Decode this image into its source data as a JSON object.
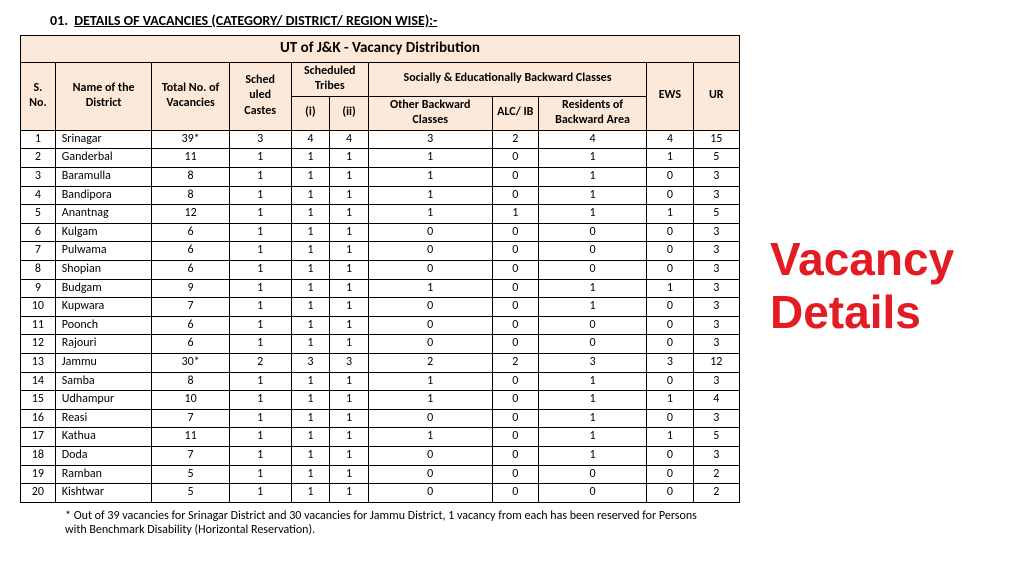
{
  "heading_prefix": "01.",
  "heading_text": "DETAILS OF VACANCIES (CATEGORY/ DISTRICT/ REGION WISE):-",
  "table_title": "UT of J&K - Vacancy Distribution",
  "headers": {
    "sno": "S. No.",
    "district": "Name of the District",
    "total": "Total No. of Vacancies",
    "sc": "Sched uled Castes",
    "st_group": "Scheduled Tribes",
    "st_i": "(i)",
    "st_ii": "(ii)",
    "sebc_group": "Socially & Educationally Backward Classes",
    "obc": "Other Backward Classes",
    "alc": "ALC/ IB",
    "rba": "Residents of Backward Area",
    "ews": "EWS",
    "ur": "UR"
  },
  "rows": [
    {
      "n": "1",
      "d": "Srinagar",
      "t": "39*",
      "sc": "3",
      "s1": "4",
      "s2": "4",
      "obc": "3",
      "alc": "2",
      "rba": "4",
      "ews": "4",
      "ur": "15"
    },
    {
      "n": "2",
      "d": "Ganderbal",
      "t": "11",
      "sc": "1",
      "s1": "1",
      "s2": "1",
      "obc": "1",
      "alc": "0",
      "rba": "1",
      "ews": "1",
      "ur": "5"
    },
    {
      "n": "3",
      "d": "Baramulla",
      "t": "8",
      "sc": "1",
      "s1": "1",
      "s2": "1",
      "obc": "1",
      "alc": "0",
      "rba": "1",
      "ews": "0",
      "ur": "3"
    },
    {
      "n": "4",
      "d": "Bandipora",
      "t": "8",
      "sc": "1",
      "s1": "1",
      "s2": "1",
      "obc": "1",
      "alc": "0",
      "rba": "1",
      "ews": "0",
      "ur": "3"
    },
    {
      "n": "5",
      "d": "Anantnag",
      "t": "12",
      "sc": "1",
      "s1": "1",
      "s2": "1",
      "obc": "1",
      "alc": "1",
      "rba": "1",
      "ews": "1",
      "ur": "5"
    },
    {
      "n": "6",
      "d": "Kulgam",
      "t": "6",
      "sc": "1",
      "s1": "1",
      "s2": "1",
      "obc": "0",
      "alc": "0",
      "rba": "0",
      "ews": "0",
      "ur": "3"
    },
    {
      "n": "7",
      "d": "Pulwama",
      "t": "6",
      "sc": "1",
      "s1": "1",
      "s2": "1",
      "obc": "0",
      "alc": "0",
      "rba": "0",
      "ews": "0",
      "ur": "3"
    },
    {
      "n": "8",
      "d": "Shopian",
      "t": "6",
      "sc": "1",
      "s1": "1",
      "s2": "1",
      "obc": "0",
      "alc": "0",
      "rba": "0",
      "ews": "0",
      "ur": "3"
    },
    {
      "n": "9",
      "d": "Budgam",
      "t": "9",
      "sc": "1",
      "s1": "1",
      "s2": "1",
      "obc": "1",
      "alc": "0",
      "rba": "1",
      "ews": "1",
      "ur": "3"
    },
    {
      "n": "10",
      "d": "Kupwara",
      "t": "7",
      "sc": "1",
      "s1": "1",
      "s2": "1",
      "obc": "0",
      "alc": "0",
      "rba": "1",
      "ews": "0",
      "ur": "3"
    },
    {
      "n": "11",
      "d": "Poonch",
      "t": "6",
      "sc": "1",
      "s1": "1",
      "s2": "1",
      "obc": "0",
      "alc": "0",
      "rba": "0",
      "ews": "0",
      "ur": "3"
    },
    {
      "n": "12",
      "d": "Rajouri",
      "t": "6",
      "sc": "1",
      "s1": "1",
      "s2": "1",
      "obc": "0",
      "alc": "0",
      "rba": "0",
      "ews": "0",
      "ur": "3"
    },
    {
      "n": "13",
      "d": "Jammu",
      "t": "30*",
      "sc": "2",
      "s1": "3",
      "s2": "3",
      "obc": "2",
      "alc": "2",
      "rba": "3",
      "ews": "3",
      "ur": "12"
    },
    {
      "n": "14",
      "d": "Samba",
      "t": "8",
      "sc": "1",
      "s1": "1",
      "s2": "1",
      "obc": "1",
      "alc": "0",
      "rba": "1",
      "ews": "0",
      "ur": "3"
    },
    {
      "n": "15",
      "d": "Udhampur",
      "t": "10",
      "sc": "1",
      "s1": "1",
      "s2": "1",
      "obc": "1",
      "alc": "0",
      "rba": "1",
      "ews": "1",
      "ur": "4"
    },
    {
      "n": "16",
      "d": "Reasi",
      "t": "7",
      "sc": "1",
      "s1": "1",
      "s2": "1",
      "obc": "0",
      "alc": "0",
      "rba": "1",
      "ews": "0",
      "ur": "3"
    },
    {
      "n": "17",
      "d": "Kathua",
      "t": "11",
      "sc": "1",
      "s1": "1",
      "s2": "1",
      "obc": "1",
      "alc": "0",
      "rba": "1",
      "ews": "1",
      "ur": "5"
    },
    {
      "n": "18",
      "d": "Doda",
      "t": "7",
      "sc": "1",
      "s1": "1",
      "s2": "1",
      "obc": "0",
      "alc": "0",
      "rba": "1",
      "ews": "0",
      "ur": "3"
    },
    {
      "n": "19",
      "d": "Ramban",
      "t": "5",
      "sc": "1",
      "s1": "1",
      "s2": "1",
      "obc": "0",
      "alc": "0",
      "rba": "0",
      "ews": "0",
      "ur": "2"
    },
    {
      "n": "20",
      "d": "Kishtwar",
      "t": "5",
      "sc": "1",
      "s1": "1",
      "s2": "1",
      "obc": "0",
      "alc": "0",
      "rba": "0",
      "ews": "0",
      "ur": "2"
    }
  ],
  "footnote": "* Out of 39 vacancies for Srinagar District and 30 vacancies for Jammu District, 1 vacancy from each has been reserved for Persons with Benchmark Disability (Horizontal Reservation).",
  "side_label_1": "Vacancy",
  "side_label_2": "Details",
  "colors": {
    "header_bg": "#fde9d9",
    "border": "#000000",
    "accent": "#e31b23"
  },
  "column_widths_pct": [
    4.5,
    12.5,
    10,
    8,
    5,
    5,
    16,
    6,
    14,
    6,
    6
  ]
}
